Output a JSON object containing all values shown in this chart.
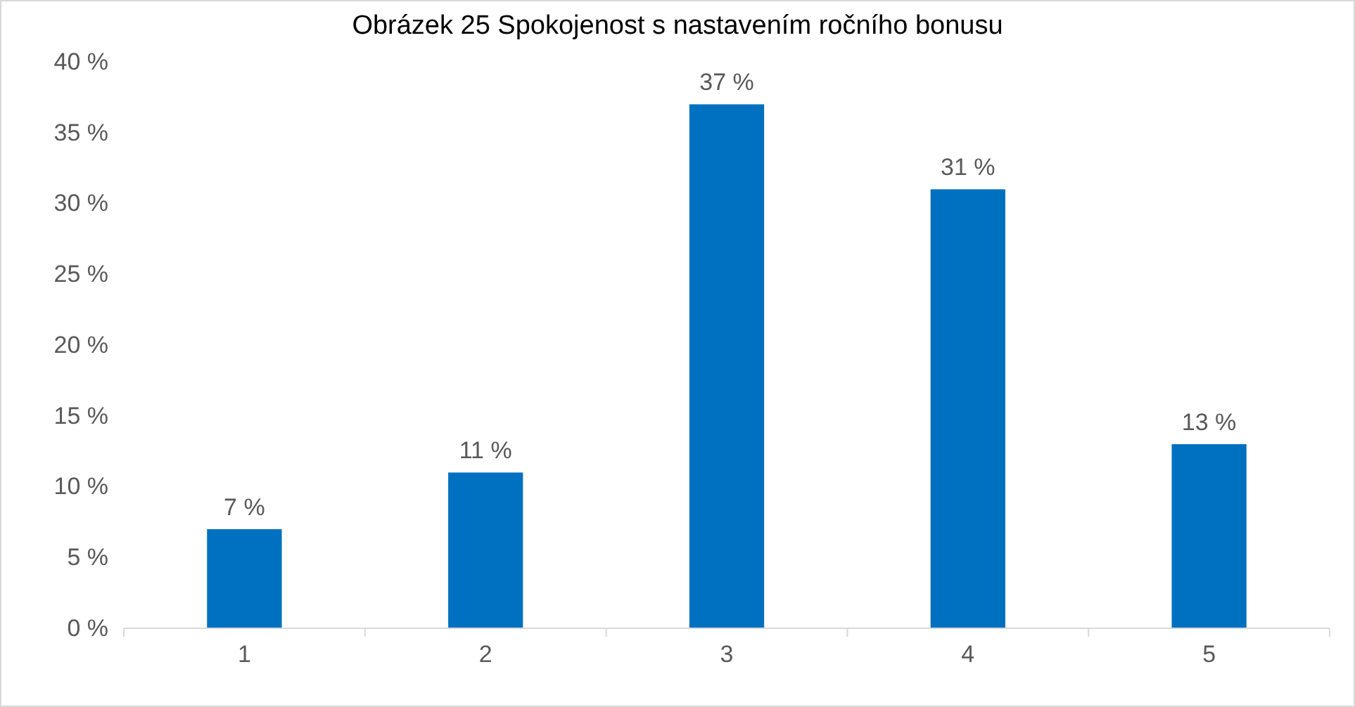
{
  "chart_data": {
    "type": "bar",
    "title": "Obrázek 25 Spokojenost s nastavením ročního bonusu",
    "categories": [
      "1",
      "2",
      "3",
      "4",
      "5"
    ],
    "values": [
      7,
      11,
      37,
      31,
      13
    ],
    "value_labels": [
      "7 %",
      "11 %",
      "37 %",
      "31 %",
      "13 %"
    ],
    "color": "#0070c0",
    "ylim": [
      0,
      40
    ],
    "yticks": [
      {
        "value": 0,
        "label": "0 %"
      },
      {
        "value": 5,
        "label": "5 %"
      },
      {
        "value": 10,
        "label": "10 %"
      },
      {
        "value": 15,
        "label": "15 %"
      },
      {
        "value": 20,
        "label": "20 %"
      },
      {
        "value": 25,
        "label": "25 %"
      },
      {
        "value": 30,
        "label": "30 %"
      },
      {
        "value": 35,
        "label": "35 %"
      },
      {
        "value": 40,
        "label": "40 %"
      }
    ],
    "grid": false
  }
}
